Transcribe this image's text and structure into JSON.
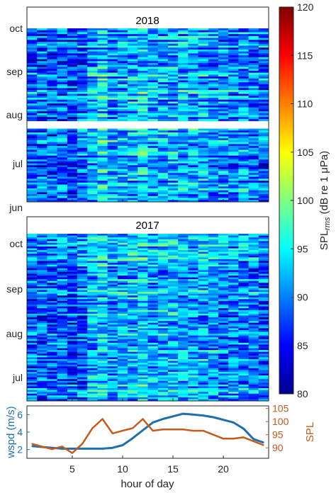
{
  "chart_data": [
    {
      "type": "heatmap",
      "title": "2018",
      "x_range": [
        0.5,
        24.5
      ],
      "y_tick_labels": [
        "oct",
        "sep",
        "aug",
        "jul",
        "jun"
      ],
      "colormap": "jet",
      "data_gap": "around mid-July (white band)",
      "value_range": [
        80,
        120
      ]
    },
    {
      "type": "heatmap",
      "title": "2017",
      "x_range": [
        0.5,
        24.5
      ],
      "y_tick_labels": [
        "oct",
        "sep",
        "aug",
        "jul"
      ],
      "colormap": "jet",
      "value_range": [
        80,
        120
      ]
    },
    {
      "type": "colorbar",
      "label_main": "SPL",
      "label_sub": "rms",
      "label_rest": " (dB re 1 μPa)",
      "ticks": [
        80,
        85,
        90,
        95,
        100,
        105,
        110,
        115,
        120
      ],
      "colormap": "jet"
    },
    {
      "type": "line",
      "xlabel": "hour of day",
      "x_ticks": [
        5,
        10,
        15,
        20
      ],
      "xlim": [
        0.5,
        24.5
      ],
      "left_axis": {
        "label": "wspd (m/s)",
        "ticks": [
          2,
          4,
          6
        ],
        "ylim": [
          1,
          7
        ],
        "color": "#1f6fae"
      },
      "right_axis": {
        "label": "SPL",
        "ticks": [
          90,
          95,
          100,
          105
        ],
        "ylim": [
          86,
          106
        ],
        "color": "#c55a1c"
      },
      "series": [
        {
          "axis": "left",
          "x": [
            1,
            2,
            3,
            4,
            5,
            6,
            7,
            8,
            9,
            10,
            11,
            12,
            13,
            14,
            15,
            16,
            17,
            18,
            19,
            20,
            21,
            22,
            23,
            24
          ],
          "values": [
            2.4,
            2.3,
            2.2,
            2.1,
            2.1,
            2.1,
            2.1,
            2.1,
            2.2,
            2.5,
            3.3,
            4.2,
            5.1,
            5.5,
            5.8,
            6.1,
            6.0,
            5.9,
            5.7,
            5.4,
            5.1,
            4.4,
            3.2,
            2.8
          ]
        },
        {
          "axis": "right",
          "x": [
            1,
            2,
            3,
            4,
            5,
            6,
            7,
            8,
            9,
            10,
            11,
            12,
            13,
            14,
            15,
            16,
            17,
            18,
            19,
            20,
            21,
            22,
            23,
            24
          ],
          "values": [
            91.5,
            90.5,
            89.5,
            90.5,
            88.0,
            91.5,
            97.5,
            101.0,
            95.5,
            96.5,
            97.5,
            101.0,
            96.5,
            97.0,
            97.0,
            97.0,
            96.5,
            96.5,
            95.0,
            93.5,
            93.5,
            94.0,
            92.5,
            91.0
          ]
        }
      ]
    }
  ]
}
